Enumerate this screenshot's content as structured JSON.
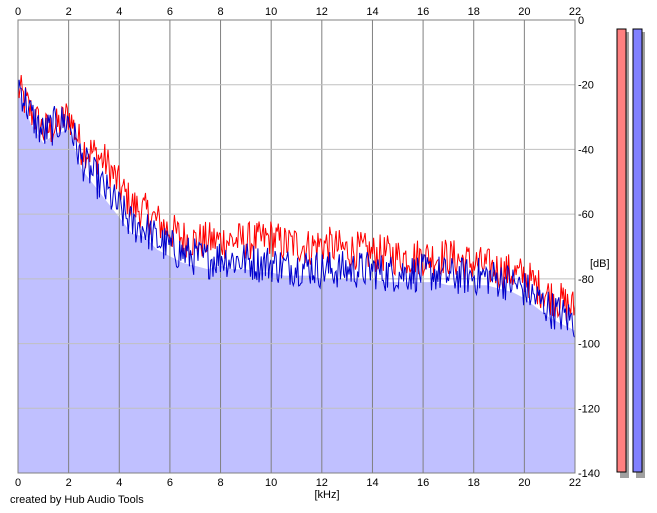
{
  "chart_data": {
    "type": "line",
    "xlabel": "[kHz]",
    "ylabel": "[dB]",
    "xlim": [
      0,
      22
    ],
    "ylim": [
      -140,
      0
    ],
    "x_ticks": [
      "0",
      "2",
      "4",
      "6",
      "8",
      "10",
      "12",
      "14",
      "16",
      "18",
      "20",
      "22"
    ],
    "y_ticks": [
      "0",
      "-20",
      "-40",
      "-60",
      "-80",
      "-100",
      "-120",
      "-140"
    ],
    "grid": true,
    "series": [
      {
        "color": "#ff0000",
        "x": [
          0,
          0.5,
          1,
          1.5,
          2,
          2.5,
          3,
          3.5,
          4,
          4.5,
          5,
          5.5,
          6,
          6.5,
          7,
          7.5,
          8,
          8.5,
          9,
          9.5,
          10,
          10.5,
          11,
          11.5,
          12,
          12.5,
          13,
          13.5,
          14,
          14.5,
          15,
          15.5,
          16,
          16.5,
          17,
          17.5,
          18,
          18.5,
          19,
          19.5,
          20,
          20.5,
          21,
          21.5,
          22
        ],
        "y": [
          -20,
          -27,
          -33,
          -32,
          -28,
          -38,
          -40,
          -43,
          -50,
          -56,
          -58,
          -61,
          -64,
          -66,
          -67,
          -67,
          -67,
          -67,
          -67,
          -67,
          -66,
          -68,
          -68,
          -69,
          -68,
          -69,
          -70,
          -70,
          -71,
          -71,
          -72,
          -72,
          -72,
          -72,
          -72,
          -73,
          -74,
          -75,
          -76,
          -77,
          -78,
          -81,
          -84,
          -86,
          -88
        ]
      },
      {
        "color": "#0000cc",
        "x": [
          0,
          0.5,
          1,
          1.5,
          2,
          2.5,
          3,
          3.5,
          4,
          4.5,
          5,
          5.5,
          6,
          6.5,
          7,
          7.5,
          8,
          8.5,
          9,
          9.5,
          10,
          10.5,
          11,
          11.5,
          12,
          12.5,
          13,
          13.5,
          14,
          14.5,
          15,
          15.5,
          16,
          16.5,
          17,
          17.5,
          18,
          18.5,
          19,
          19.5,
          20,
          20.5,
          21,
          21.5,
          22
        ],
        "y": [
          -18,
          -28,
          -34,
          -31,
          -30,
          -42,
          -47,
          -52,
          -57,
          -62,
          -63,
          -67,
          -69,
          -71,
          -72,
          -73,
          -72,
          -73,
          -73,
          -74,
          -74,
          -75,
          -75,
          -75,
          -76,
          -76,
          -76,
          -76,
          -76,
          -77,
          -77,
          -77,
          -77,
          -77,
          -78,
          -78,
          -78,
          -78,
          -79,
          -80,
          -82,
          -85,
          -88,
          -90,
          -92
        ]
      }
    ],
    "level_meters": [
      {
        "color": "#ff8080"
      },
      {
        "color": "#8080ff"
      }
    ],
    "fill_color": "#c0c0ff"
  },
  "footer": {
    "credit": "created by Hub Audio Tools"
  }
}
